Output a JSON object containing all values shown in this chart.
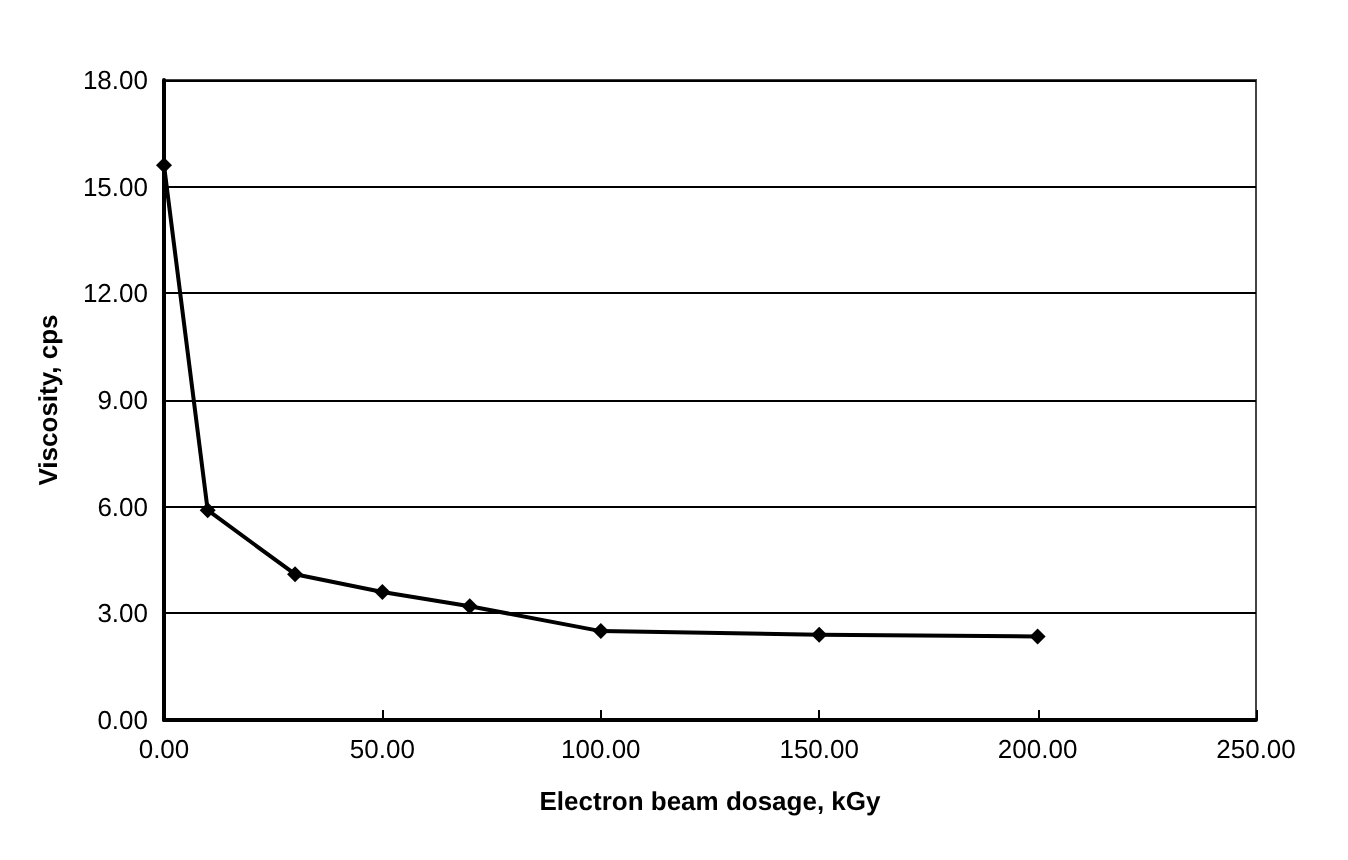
{
  "chart_data": {
    "type": "line",
    "xlabel": "Electron beam dosage, kGy",
    "ylabel": "Viscosity, cps",
    "x": [
      0,
      10,
      30,
      50,
      70,
      100,
      150,
      200
    ],
    "series": [
      {
        "color": "#000000",
        "values": [
          15.6,
          5.9,
          4.1,
          3.6,
          3.2,
          2.5,
          2.4,
          2.35
        ]
      }
    ],
    "xlim": [
      0,
      250
    ],
    "xticks": [
      {
        "value": 0,
        "label": "0.00"
      },
      {
        "value": 50,
        "label": "50.00"
      },
      {
        "value": 100,
        "label": "100.00"
      },
      {
        "value": 150,
        "label": "150.00"
      },
      {
        "value": 200,
        "label": "200.00"
      },
      {
        "value": 250,
        "label": "250.00"
      }
    ],
    "ylim": [
      0,
      18
    ],
    "yticks": [
      {
        "value": 0,
        "label": "0.00"
      },
      {
        "value": 3,
        "label": "3.00"
      },
      {
        "value": 6,
        "label": "6.00"
      },
      {
        "value": 9,
        "label": "9.00"
      },
      {
        "value": 12,
        "label": "12.00"
      },
      {
        "value": 15,
        "label": "15.00"
      },
      {
        "value": 18,
        "label": "18.00"
      }
    ],
    "grid": "y",
    "marker": "diamond",
    "line_style": "solid"
  }
}
